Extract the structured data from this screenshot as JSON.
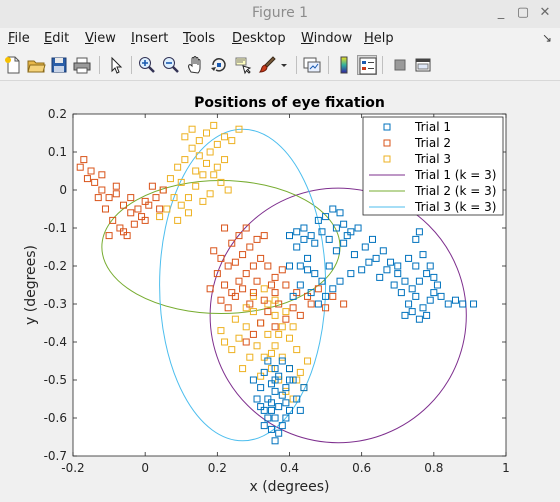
{
  "window": {
    "title": "Figure 1"
  },
  "window_buttons": {
    "minimize": "_",
    "restore": "▢",
    "close": "✕"
  },
  "menu": {
    "items": [
      {
        "label": "File",
        "u": "F",
        "rest": "ile"
      },
      {
        "label": "Edit",
        "u": "E",
        "rest": "dit"
      },
      {
        "label": "View",
        "u": "V",
        "rest": "iew"
      },
      {
        "label": "Insert",
        "u": "I",
        "rest": "nsert"
      },
      {
        "label": "Tools",
        "u": "T",
        "rest": "ools"
      },
      {
        "label": "Desktop",
        "u": "D",
        "rest": "esktop"
      },
      {
        "label": "Window",
        "u": "W",
        "rest": "indow"
      },
      {
        "label": "Help",
        "u": "H",
        "rest": "elp"
      }
    ],
    "pin": "↘"
  },
  "toolbar": {
    "icons": [
      "new-figure-icon",
      "open-file-icon",
      "save-icon",
      "print-icon",
      "select-arrow-icon",
      "zoom-in-icon",
      "zoom-out-icon",
      "pan-hand-icon",
      "rotate-3d-icon",
      "data-cursor-icon",
      "brush-icon",
      "brush-dropdown-icon",
      "link-plot-icon",
      "colorbar-icon",
      "legend-icon",
      "hide-tools-icon",
      "dock-icon"
    ]
  },
  "colors": {
    "trial1": "#0072BD",
    "trial2": "#D95319",
    "trial3": "#EDB120",
    "fit1": "#7E2F8E",
    "fit2": "#77AC30",
    "fit3": "#4DBEEE"
  },
  "chart_data": {
    "type": "scatter",
    "title": "Positions of eye fixation",
    "xlabel": "x (degrees)",
    "ylabel": "y (degrees)",
    "xlim": [
      -0.2,
      1.0
    ],
    "ylim": [
      -0.7,
      0.2
    ],
    "xticks": [
      -0.2,
      0,
      0.2,
      0.4,
      0.6,
      0.8,
      1
    ],
    "xticklabels": [
      "-0.2",
      "0",
      "0.2",
      "0.4",
      "0.6",
      "0.8",
      "1"
    ],
    "yticks": [
      -0.7,
      -0.6,
      -0.5,
      -0.4,
      -0.3,
      -0.2,
      -0.1,
      0,
      0.1,
      0.2
    ],
    "yticklabels": [
      "-0.7",
      "-0.6",
      "-0.5",
      "-0.4",
      "-0.3",
      "-0.2",
      "-0.1",
      "0",
      "0.1",
      "0.2"
    ],
    "grid": false,
    "legend_position": "top-right",
    "series": [
      {
        "name": "Trial 1",
        "marker": "square",
        "points": [
          [
            0.32,
            -0.52
          ],
          [
            0.34,
            -0.55
          ],
          [
            0.36,
            -0.6
          ],
          [
            0.35,
            -0.63
          ],
          [
            0.37,
            -0.57
          ],
          [
            0.39,
            -0.52
          ],
          [
            0.33,
            -0.48
          ],
          [
            0.38,
            -0.45
          ],
          [
            0.4,
            -0.5
          ],
          [
            0.36,
            -0.47
          ],
          [
            0.42,
            -0.55
          ],
          [
            0.35,
            -0.58
          ],
          [
            0.31,
            -0.55
          ],
          [
            0.38,
            -0.62
          ],
          [
            0.34,
            -0.6
          ],
          [
            0.4,
            -0.58
          ],
          [
            0.36,
            -0.53
          ],
          [
            0.33,
            -0.58
          ],
          [
            0.37,
            -0.49
          ],
          [
            0.39,
            -0.56
          ],
          [
            0.44,
            -0.52
          ],
          [
            0.41,
            -0.5
          ],
          [
            0.3,
            -0.5
          ],
          [
            0.36,
            -0.66
          ],
          [
            0.35,
            -0.51
          ],
          [
            0.38,
            -0.54
          ],
          [
            0.32,
            -0.57
          ],
          [
            0.34,
            -0.45
          ],
          [
            0.4,
            -0.47
          ],
          [
            0.43,
            -0.58
          ],
          [
            0.4,
            -0.2
          ],
          [
            0.42,
            -0.15
          ],
          [
            0.44,
            -0.1
          ],
          [
            0.46,
            -0.12
          ],
          [
            0.48,
            -0.08
          ],
          [
            0.5,
            -0.07
          ],
          [
            0.52,
            -0.05
          ],
          [
            0.54,
            -0.06
          ],
          [
            0.55,
            -0.09
          ],
          [
            0.57,
            -0.11
          ],
          [
            0.45,
            -0.18
          ],
          [
            0.47,
            -0.22
          ],
          [
            0.49,
            -0.24
          ],
          [
            0.51,
            -0.2
          ],
          [
            0.53,
            -0.16
          ],
          [
            0.55,
            -0.14
          ],
          [
            0.58,
            -0.17
          ],
          [
            0.6,
            -0.21
          ],
          [
            0.62,
            -0.19
          ],
          [
            0.43,
            -0.25
          ],
          [
            0.41,
            -0.28
          ],
          [
            0.46,
            -0.27
          ],
          [
            0.5,
            -0.28
          ],
          [
            0.48,
            -0.3
          ],
          [
            0.52,
            -0.26
          ],
          [
            0.44,
            -0.13
          ],
          [
            0.42,
            -0.11
          ],
          [
            0.4,
            -0.12
          ],
          [
            0.56,
            -0.12
          ],
          [
            0.59,
            -0.1
          ],
          [
            0.47,
            -0.14
          ],
          [
            0.49,
            -0.11
          ],
          [
            0.51,
            -0.13
          ],
          [
            0.53,
            -0.1
          ],
          [
            0.45,
            -0.21
          ],
          [
            0.43,
            -0.2
          ],
          [
            0.57,
            -0.22
          ],
          [
            0.54,
            -0.24
          ],
          [
            0.61,
            -0.15
          ],
          [
            0.63,
            -0.13
          ],
          [
            0.64,
            -0.18
          ],
          [
            0.66,
            -0.16
          ],
          [
            0.68,
            -0.19
          ],
          [
            0.7,
            -0.22
          ],
          [
            0.72,
            -0.24
          ],
          [
            0.74,
            -0.26
          ],
          [
            0.76,
            -0.24
          ],
          [
            0.78,
            -0.22
          ],
          [
            0.75,
            -0.2
          ],
          [
            0.73,
            -0.18
          ],
          [
            0.75,
            -0.28
          ],
          [
            0.73,
            -0.3
          ],
          [
            0.77,
            -0.31
          ],
          [
            0.79,
            -0.29
          ],
          [
            0.8,
            -0.27
          ],
          [
            0.78,
            -0.33
          ],
          [
            0.76,
            -0.34
          ],
          [
            0.74,
            -0.32
          ],
          [
            0.71,
            -0.27
          ],
          [
            0.72,
            -0.33
          ],
          [
            0.81,
            -0.25
          ],
          [
            0.79,
            -0.2
          ],
          [
            0.77,
            -0.17
          ],
          [
            0.8,
            -0.23
          ],
          [
            0.82,
            -0.28
          ],
          [
            0.84,
            -0.3
          ],
          [
            0.86,
            -0.29
          ],
          [
            0.88,
            -0.3
          ],
          [
            0.91,
            -0.3
          ],
          [
            0.75,
            -0.13
          ],
          [
            0.76,
            -0.11
          ],
          [
            0.7,
            -0.2
          ],
          [
            0.69,
            -0.25
          ],
          [
            0.67,
            -0.21
          ],
          [
            0.65,
            -0.23
          ],
          [
            0.36,
            -0.5
          ],
          [
            0.33,
            -0.62
          ],
          [
            0.37,
            -0.64
          ],
          [
            0.35,
            -0.56
          ],
          [
            0.39,
            -0.6
          ]
        ]
      },
      {
        "name": "Trial 2",
        "marker": "square",
        "points": [
          [
            -0.17,
            0.08
          ],
          [
            -0.15,
            0.05
          ],
          [
            -0.14,
            0.02
          ],
          [
            -0.12,
            0.0
          ],
          [
            -0.1,
            -0.02
          ],
          [
            -0.08,
            0.01
          ],
          [
            -0.06,
            -0.04
          ],
          [
            -0.04,
            -0.06
          ],
          [
            -0.02,
            -0.05
          ],
          [
            0.0,
            -0.03
          ],
          [
            -0.13,
            -0.02
          ],
          [
            -0.11,
            -0.05
          ],
          [
            -0.09,
            -0.08
          ],
          [
            -0.07,
            -0.1
          ],
          [
            -0.05,
            -0.12
          ],
          [
            -0.03,
            -0.09
          ],
          [
            -0.01,
            -0.07
          ],
          [
            0.01,
            -0.04
          ],
          [
            0.03,
            -0.02
          ],
          [
            0.02,
            0.01
          ],
          [
            -0.16,
            0.03
          ],
          [
            -0.18,
            0.06
          ],
          [
            -0.12,
            0.04
          ],
          [
            -0.08,
            -0.01
          ],
          [
            -0.04,
            -0.02
          ],
          [
            0.0,
            -0.08
          ],
          [
            0.04,
            -0.05
          ],
          [
            0.05,
            0.0
          ],
          [
            -0.06,
            -0.11
          ],
          [
            -0.1,
            -0.12
          ],
          [
            0.19,
            -0.16
          ],
          [
            0.21,
            -0.18
          ],
          [
            0.23,
            -0.2
          ],
          [
            0.25,
            -0.19
          ],
          [
            0.27,
            -0.17
          ],
          [
            0.29,
            -0.15
          ],
          [
            0.31,
            -0.13
          ],
          [
            0.33,
            -0.12
          ],
          [
            0.28,
            -0.1
          ],
          [
            0.26,
            -0.12
          ],
          [
            0.2,
            -0.22
          ],
          [
            0.22,
            -0.25
          ],
          [
            0.24,
            -0.27
          ],
          [
            0.26,
            -0.24
          ],
          [
            0.28,
            -0.22
          ],
          [
            0.3,
            -0.2
          ],
          [
            0.32,
            -0.18
          ],
          [
            0.34,
            -0.2
          ],
          [
            0.36,
            -0.23
          ],
          [
            0.38,
            -0.21
          ],
          [
            0.18,
            -0.26
          ],
          [
            0.21,
            -0.29
          ],
          [
            0.23,
            -0.31
          ],
          [
            0.25,
            -0.28
          ],
          [
            0.27,
            -0.26
          ],
          [
            0.3,
            -0.27
          ],
          [
            0.33,
            -0.29
          ],
          [
            0.36,
            -0.27
          ],
          [
            0.39,
            -0.25
          ],
          [
            0.42,
            -0.27
          ],
          [
            0.45,
            -0.28
          ],
          [
            0.48,
            -0.26
          ],
          [
            0.52,
            -0.28
          ],
          [
            0.55,
            -0.3
          ],
          [
            0.34,
            -0.32
          ],
          [
            0.32,
            -0.35
          ],
          [
            0.3,
            -0.38
          ],
          [
            0.28,
            -0.4
          ],
          [
            0.36,
            -0.36
          ],
          [
            0.39,
            -0.34
          ],
          [
            0.41,
            -0.31
          ],
          [
            0.43,
            -0.33
          ],
          [
            0.46,
            -0.3
          ],
          [
            0.5,
            -0.31
          ],
          [
            0.31,
            -0.24
          ],
          [
            0.29,
            -0.3
          ],
          [
            0.35,
            -0.25
          ],
          [
            0.37,
            -0.3
          ],
          [
            0.24,
            -0.14
          ],
          [
            0.22,
            -0.1
          ]
        ]
      },
      {
        "name": "Trial 3",
        "marker": "square",
        "points": [
          [
            0.05,
            0.0
          ],
          [
            0.07,
            0.03
          ],
          [
            0.09,
            0.06
          ],
          [
            0.11,
            0.08
          ],
          [
            0.13,
            0.11
          ],
          [
            0.15,
            0.09
          ],
          [
            0.17,
            0.07
          ],
          [
            0.19,
            0.04
          ],
          [
            0.21,
            0.02
          ],
          [
            0.23,
            0.0
          ],
          [
            0.08,
            -0.02
          ],
          [
            0.1,
            -0.04
          ],
          [
            0.12,
            -0.02
          ],
          [
            0.14,
            0.01
          ],
          [
            0.16,
            0.04
          ],
          [
            0.18,
            0.1
          ],
          [
            0.2,
            0.12
          ],
          [
            0.22,
            0.14
          ],
          [
            0.24,
            0.13
          ],
          [
            0.26,
            0.16
          ],
          [
            0.11,
            0.14
          ],
          [
            0.13,
            0.16
          ],
          [
            0.15,
            0.13
          ],
          [
            0.17,
            0.15
          ],
          [
            0.19,
            0.17
          ],
          [
            0.06,
            -0.05
          ],
          [
            0.04,
            -0.07
          ],
          [
            0.09,
            -0.08
          ],
          [
            0.12,
            -0.06
          ],
          [
            0.16,
            -0.03
          ],
          [
            0.18,
            -0.01
          ],
          [
            0.2,
            0.06
          ],
          [
            0.22,
            0.08
          ],
          [
            0.14,
            0.05
          ],
          [
            0.1,
            0.02
          ],
          [
            0.3,
            -0.32
          ],
          [
            0.32,
            -0.35
          ],
          [
            0.34,
            -0.38
          ],
          [
            0.36,
            -0.41
          ],
          [
            0.38,
            -0.44
          ],
          [
            0.4,
            -0.47
          ],
          [
            0.42,
            -0.5
          ],
          [
            0.44,
            -0.52
          ],
          [
            0.28,
            -0.36
          ],
          [
            0.26,
            -0.39
          ],
          [
            0.24,
            -0.42
          ],
          [
            0.22,
            -0.4
          ],
          [
            0.31,
            -0.41
          ],
          [
            0.33,
            -0.44
          ],
          [
            0.35,
            -0.47
          ],
          [
            0.37,
            -0.5
          ],
          [
            0.39,
            -0.53
          ],
          [
            0.41,
            -0.55
          ],
          [
            0.43,
            -0.48
          ],
          [
            0.45,
            -0.45
          ],
          [
            0.34,
            -0.3
          ],
          [
            0.36,
            -0.33
          ],
          [
            0.38,
            -0.36
          ],
          [
            0.4,
            -0.39
          ],
          [
            0.42,
            -0.42
          ],
          [
            0.29,
            -0.44
          ],
          [
            0.27,
            -0.47
          ],
          [
            0.32,
            -0.49
          ],
          [
            0.35,
            -0.43
          ],
          [
            0.37,
            -0.38
          ],
          [
            0.3,
            -0.28
          ],
          [
            0.33,
            -0.26
          ],
          [
            0.36,
            -0.29
          ],
          [
            0.39,
            -0.32
          ],
          [
            0.41,
            -0.36
          ],
          [
            0.21,
            -0.37
          ],
          [
            0.25,
            -0.34
          ],
          [
            0.28,
            -0.31
          ]
        ]
      }
    ],
    "fits": [
      {
        "name": "Trial 1 (k = 3)",
        "center": [
          0.535,
          -0.33
        ],
        "radii": [
          0.355,
          0.335
        ]
      },
      {
        "name": "Trial 2 (k = 3)",
        "center": [
          0.21,
          -0.15
        ],
        "radii": [
          0.33,
          0.175
        ]
      },
      {
        "name": "Trial 3 (k = 3)",
        "center": [
          0.27,
          -0.25
        ],
        "radii": [
          0.23,
          0.41
        ]
      }
    ]
  }
}
